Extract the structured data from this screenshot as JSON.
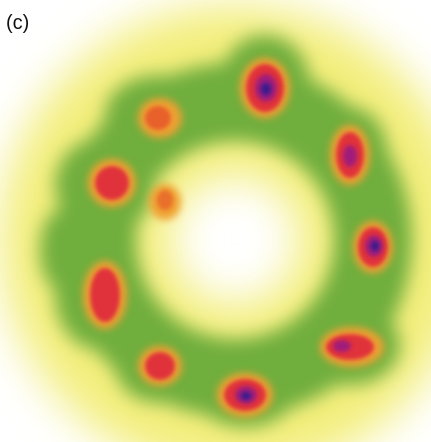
{
  "panel_label": "(c)"
}
